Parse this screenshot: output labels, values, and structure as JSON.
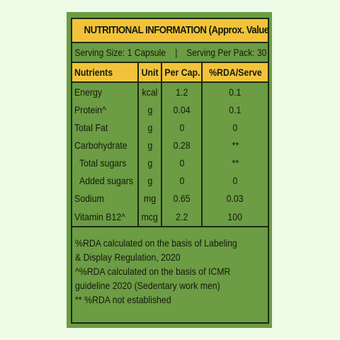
{
  "title": "NUTRITIONAL INFORMATION (Approx. Values)",
  "serving": {
    "size": "Serving Size: 1 Capsule",
    "separator": "|",
    "per_pack": "Serving Per Pack: 30"
  },
  "table": {
    "headers": [
      "Nutrients",
      "Unit",
      "Per Cap.",
      "%RDA/Serve"
    ],
    "rows": [
      {
        "name": "Energy",
        "unit": "kcal",
        "per_cap": "1.2",
        "rda": "0.1"
      },
      {
        "name": "Protein^",
        "unit": "g",
        "per_cap": "0.04",
        "rda": "0.1"
      },
      {
        "name": "Total Fat",
        "unit": "g",
        "per_cap": "0",
        "rda": "0"
      },
      {
        "name": "Carbohydrate",
        "unit": "g",
        "per_cap": "0.28",
        "rda": "**"
      },
      {
        "name": "Total sugars",
        "unit": "g",
        "per_cap": "0",
        "rda": "**"
      },
      {
        "name": "Added sugars",
        "unit": "g",
        "per_cap": "0",
        "rda": "0"
      },
      {
        "name": "Sodium",
        "unit": "mg",
        "per_cap": "0.65",
        "rda": "0.03"
      },
      {
        "name": "Vitamin B12^",
        "unit": "mcg",
        "per_cap": "2.2",
        "rda": "100"
      }
    ]
  },
  "notes": [
    "%RDA calculated on the basis of Labeling",
    "& Display Regulation, 2020",
    "^%RDA calculated on the basis of ICMR",
    "guideline 2020 (Sedentary work men)",
    "** %RDA not established"
  ],
  "colors": {
    "background": "#eefbe6",
    "label_green": "#6c9c44",
    "header_yellow": "#f2c33a",
    "border": "#1f2a10"
  }
}
